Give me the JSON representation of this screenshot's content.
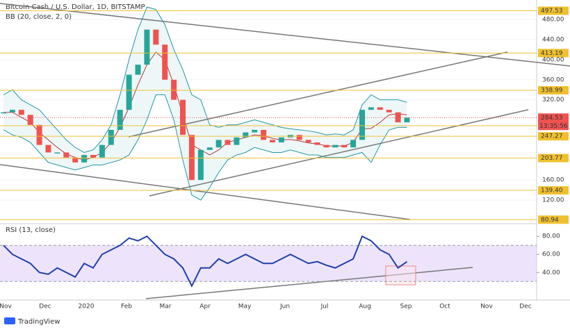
{
  "chart_data": [
    {
      "type": "candlestick",
      "title": "Bitcoin Cash / U.S. Dollar, 1D, BITSTAMP",
      "subtitle": "BB (20, close, 2, 0)",
      "values": [
        295,
        300,
        290,
        270,
        230,
        215,
        215,
        205,
        195,
        210,
        205,
        230,
        260,
        300,
        370,
        390,
        460,
        430,
        360,
        320,
        250,
        160,
        220,
        225,
        240,
        230,
        245,
        255,
        260,
        240,
        235,
        245,
        250,
        240,
        235,
        230,
        225,
        230,
        225,
        240,
        300,
        305,
        300,
        295,
        275,
        284.53
      ],
      "up_color": "#26a69a",
      "down_color": "#ef5350",
      "bb_upper": [
        330,
        340,
        320,
        310,
        300,
        280,
        260,
        240,
        225,
        215,
        220,
        240,
        270,
        330,
        400,
        460,
        505,
        500,
        470,
        420,
        380,
        330,
        320,
        270,
        265,
        270,
        270,
        275,
        280,
        275,
        270,
        265,
        262,
        260,
        258,
        255,
        250,
        252,
        250,
        260,
        310,
        330,
        320,
        320,
        320,
        315
      ],
      "bb_middle": [
        295,
        295,
        285,
        275,
        255,
        240,
        225,
        212,
        205,
        200,
        205,
        215,
        235,
        265,
        305,
        350,
        390,
        415,
        400,
        350,
        290,
        230,
        220,
        210,
        220,
        235,
        240,
        245,
        250,
        248,
        243,
        240,
        241,
        238,
        234,
        232,
        228,
        228,
        228,
        235,
        262,
        263,
        275,
        290,
        292,
        290
      ],
      "bb_lower": [
        260,
        250,
        245,
        235,
        215,
        195,
        190,
        185,
        180,
        185,
        190,
        190,
        195,
        200,
        210,
        240,
        280,
        330,
        330,
        280,
        200,
        130,
        120,
        145,
        175,
        200,
        210,
        215,
        225,
        220,
        215,
        215,
        220,
        215,
        210,
        210,
        205,
        205,
        205,
        210,
        215,
        195,
        230,
        260,
        265,
        265
      ],
      "bb_color": "#2196a3",
      "bb_middle_color": "#b23a3a",
      "ylim": [
        73,
        519
      ],
      "yticks": [
        {
          "value": 480,
          "label": "480.00"
        },
        {
          "value": 440,
          "label": "440.00"
        },
        {
          "value": 400,
          "label": "400.00"
        },
        {
          "value": 360,
          "label": "360.00"
        },
        {
          "value": 320,
          "label": "320.00"
        },
        {
          "value": 160,
          "label": "160.00"
        },
        {
          "value": 120,
          "label": "120.00"
        }
      ],
      "levels": [
        497.53,
        413.19,
        338.99,
        268.25,
        247.27,
        203.77,
        {
          "value": 139.4,
          "label": "139.40"
        },
        80.94
      ],
      "level_color": "#f0c030",
      "last_price": 284.53,
      "countdown": "13:35:56",
      "last_price_color": "#ef5350"
    },
    {
      "type": "line",
      "title": "RSI (13, close)",
      "values": [
        70,
        60,
        55,
        50,
        40,
        38,
        45,
        40,
        35,
        50,
        45,
        60,
        65,
        70,
        78,
        75,
        80,
        70,
        60,
        55,
        45,
        25,
        45,
        45,
        55,
        50,
        55,
        60,
        55,
        50,
        50,
        55,
        60,
        55,
        50,
        52,
        48,
        45,
        50,
        55,
        80,
        75,
        65,
        60,
        45,
        52
      ],
      "color": "#1e3fa8",
      "band": [
        30,
        70
      ],
      "band_color": "#e6d9fb",
      "ylim": [
        11,
        94
      ],
      "yticks": [
        {
          "value": 80,
          "label": "80.00"
        },
        {
          "value": 60,
          "label": "60.00"
        },
        {
          "value": 40,
          "label": "40.00"
        }
      ],
      "xtick_labels": [
        "Nov",
        "Dec",
        "2020",
        "Feb",
        "Mar",
        "Apr",
        "May",
        "Jun",
        "Jul",
        "Aug",
        "Sep",
        "Oct",
        "Nov",
        "Dec"
      ]
    }
  ],
  "footer": {
    "brand": "TradingView"
  }
}
